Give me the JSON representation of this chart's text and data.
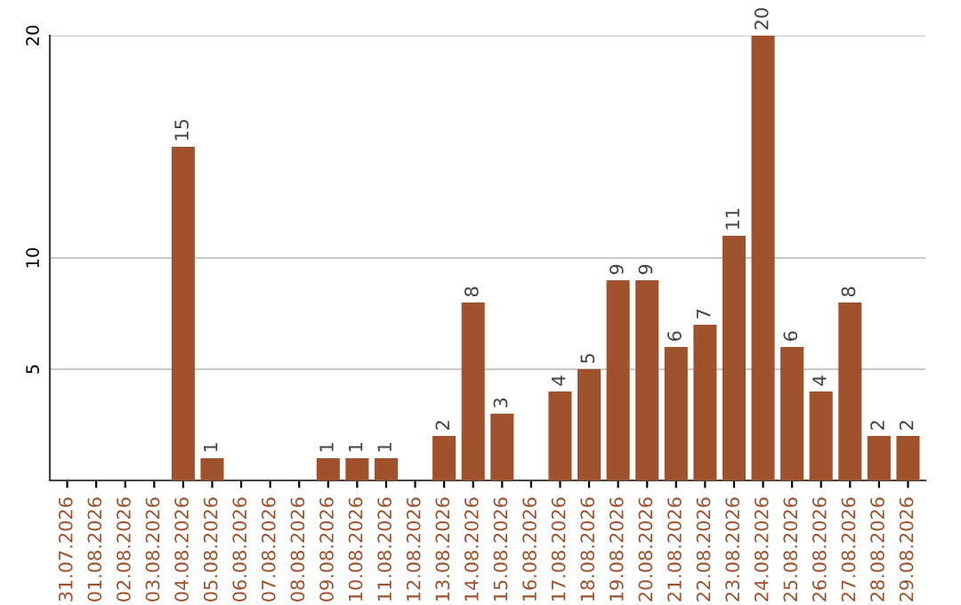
{
  "chart_data": {
    "type": "bar",
    "categories": [
      "31.07.2026",
      "01.08.2026",
      "02.08.2026",
      "03.08.2026",
      "04.08.2026",
      "05.08.2026",
      "06.08.2026",
      "07.08.2026",
      "08.08.2026",
      "09.08.2026",
      "10.08.2026",
      "11.08.2026",
      "12.08.2026",
      "13.08.2026",
      "14.08.2026",
      "15.08.2026",
      "16.08.2026",
      "17.08.2026",
      "18.08.2026",
      "19.08.2026",
      "20.08.2026",
      "21.08.2026",
      "22.08.2026",
      "23.08.2026",
      "24.08.2026",
      "25.08.2026",
      "26.08.2026",
      "27.08.2026",
      "28.08.2026",
      "29.08.2026"
    ],
    "values": [
      0,
      0,
      0,
      0,
      15,
      1,
      0,
      0,
      0,
      1,
      1,
      1,
      0,
      2,
      8,
      3,
      0,
      4,
      5,
      9,
      9,
      6,
      7,
      11,
      20,
      6,
      4,
      8,
      2,
      2
    ],
    "value_labels": [
      null,
      null,
      null,
      null,
      "15",
      "1",
      null,
      null,
      null,
      "1",
      "1",
      "1",
      null,
      "2",
      "8",
      "3",
      null,
      "4",
      "5",
      "9",
      "9",
      "6",
      "7",
      "11",
      "20",
      "6",
      "4",
      "8",
      "2",
      "2"
    ],
    "color": "#a0522d",
    "ylim": [
      0,
      20
    ],
    "yticks": [
      5,
      10,
      20
    ],
    "grid": "y"
  }
}
